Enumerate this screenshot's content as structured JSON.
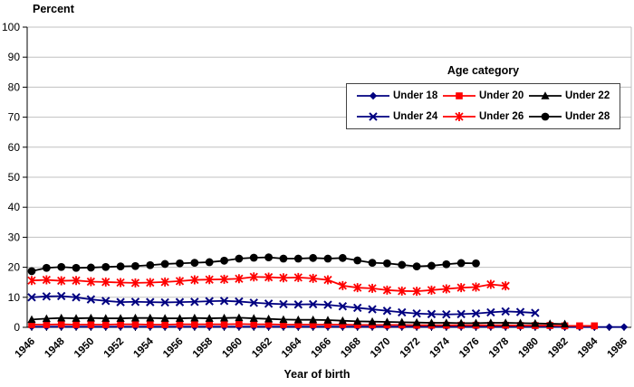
{
  "chart_data": {
    "type": "line",
    "ylabel": "Percent",
    "xlabel": "Year of birth",
    "legend_title": "Age category",
    "legend_position": "upper-right-inside",
    "grid": "horizontal",
    "gridline_color": "#c0c0c0",
    "axis_color": "#000000",
    "ylim": [
      0,
      100
    ],
    "y_ticks": [
      0,
      10,
      20,
      30,
      40,
      50,
      60,
      70,
      80,
      90,
      100
    ],
    "x_start_year": 1946,
    "x_end_year": 1986,
    "x_ticks": [
      1946,
      1948,
      1950,
      1952,
      1954,
      1956,
      1958,
      1960,
      1962,
      1964,
      1966,
      1968,
      1970,
      1972,
      1974,
      1976,
      1978,
      1980,
      1982,
      1984,
      1986
    ],
    "series": [
      {
        "name": "Under 18",
        "color": "#000080",
        "marker": "diamond",
        "start_year": 1946,
        "values": [
          0.2,
          0.2,
          0.2,
          0.2,
          0.2,
          0.2,
          0.2,
          0.2,
          0.2,
          0.2,
          0.2,
          0.2,
          0.2,
          0.2,
          0.2,
          0.2,
          0.2,
          0.2,
          0.2,
          0.2,
          0.2,
          0.2,
          0.2,
          0.2,
          0.2,
          0.2,
          0.2,
          0.2,
          0.2,
          0.2,
          0.2,
          0.2,
          0.2,
          0.2,
          0.2,
          0.2,
          0.1,
          0.1,
          0.1,
          0.1,
          0.1
        ]
      },
      {
        "name": "Under 20",
        "color": "#ff0000",
        "marker": "square",
        "start_year": 1946,
        "values": [
          0.9,
          0.9,
          1.0,
          0.9,
          0.9,
          0.9,
          1.0,
          1.0,
          0.9,
          0.9,
          1.0,
          1.0,
          1.0,
          1.0,
          1.1,
          1.0,
          1.0,
          0.9,
          0.9,
          0.9,
          0.9,
          0.9,
          0.8,
          0.8,
          0.8,
          0.8,
          0.7,
          0.7,
          0.7,
          0.7,
          0.7,
          0.7,
          0.7,
          0.6,
          0.6,
          0.6,
          0.5,
          0.5,
          0.5
        ]
      },
      {
        "name": "Under 22",
        "color": "#000000",
        "marker": "triangle",
        "start_year": 1946,
        "values": [
          2.6,
          2.9,
          3.1,
          3.0,
          3.1,
          3.0,
          3.0,
          3.1,
          3.1,
          3.0,
          3.0,
          3.1,
          3.0,
          3.1,
          3.2,
          3.0,
          2.8,
          2.6,
          2.5,
          2.5,
          2.4,
          2.2,
          2.0,
          1.9,
          1.8,
          1.7,
          1.6,
          1.5,
          1.5,
          1.4,
          1.4,
          1.5,
          1.5,
          1.4,
          1.3,
          1.2,
          1.1
        ]
      },
      {
        "name": "Under 24",
        "color": "#000080",
        "marker": "x",
        "start_year": 1946,
        "values": [
          10.0,
          10.3,
          10.4,
          10.0,
          9.3,
          8.8,
          8.4,
          8.5,
          8.4,
          8.3,
          8.4,
          8.5,
          8.7,
          8.8,
          8.6,
          8.2,
          7.9,
          7.7,
          7.6,
          7.7,
          7.5,
          7.0,
          6.5,
          6.0,
          5.5,
          5.0,
          4.6,
          4.4,
          4.3,
          4.4,
          4.6,
          5.0,
          5.3,
          5.1,
          4.8
        ]
      },
      {
        "name": "Under 26",
        "color": "#ff0000",
        "marker": "asterisk",
        "start_year": 1946,
        "values": [
          15.6,
          15.8,
          15.5,
          15.6,
          15.2,
          15.1,
          14.9,
          14.8,
          14.9,
          15.1,
          15.4,
          15.8,
          15.9,
          16.0,
          16.2,
          16.8,
          16.7,
          16.5,
          16.6,
          16.3,
          15.8,
          13.9,
          13.2,
          13.0,
          12.4,
          12.1,
          12.0,
          12.4,
          12.8,
          13.2,
          13.4,
          14.3,
          13.8
        ]
      },
      {
        "name": "Under 28",
        "color": "#000000",
        "marker": "circle",
        "start_year": 1946,
        "values": [
          18.7,
          19.8,
          20.1,
          19.8,
          19.9,
          20.1,
          20.3,
          20.4,
          20.7,
          21.1,
          21.3,
          21.5,
          21.7,
          22.2,
          22.9,
          23.2,
          23.3,
          22.9,
          22.9,
          23.1,
          22.9,
          23.1,
          22.3,
          21.5,
          21.3,
          20.8,
          20.3,
          20.5,
          21.0,
          21.4,
          21.3
        ]
      }
    ]
  }
}
